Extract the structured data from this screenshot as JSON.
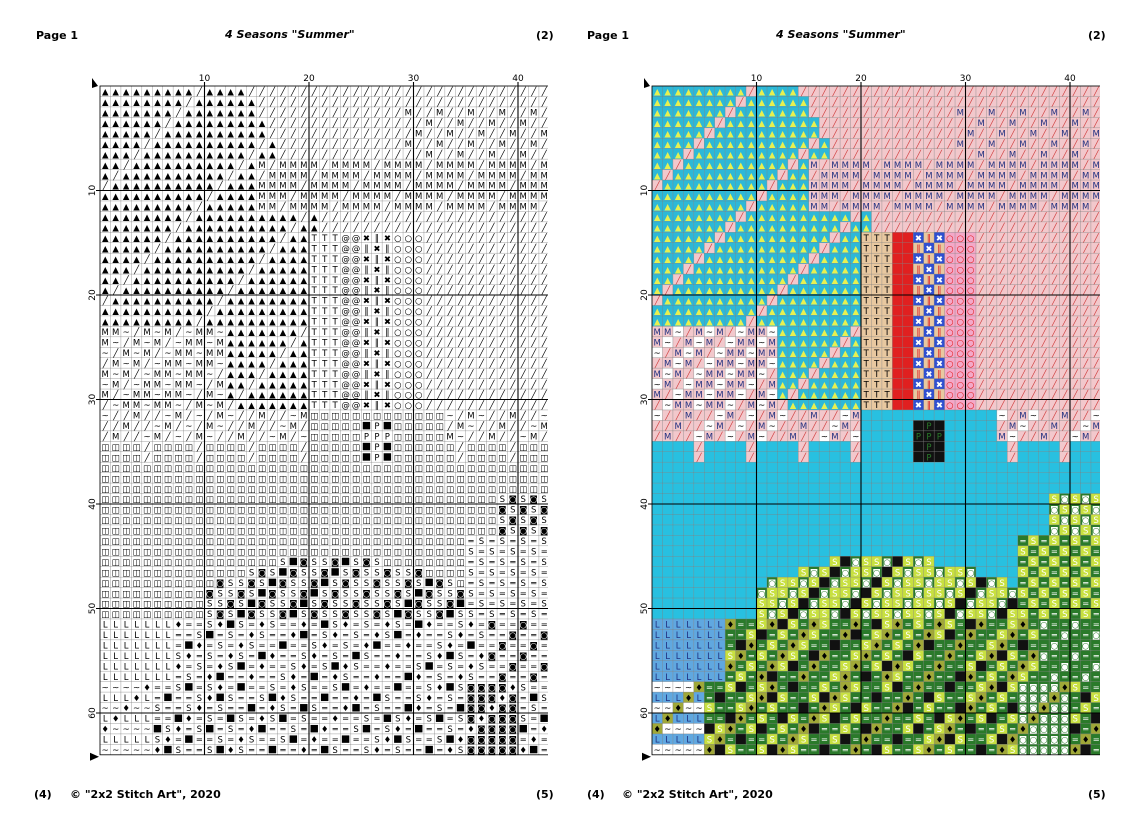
{
  "left_page": {
    "page_label": "Page 1",
    "title": "4 Seasons \"Summer\"",
    "top_right": "(2)",
    "bottom_left": "(4)",
    "copyright": "© \"2x2 Stitch Art\", 2020",
    "bottom_right": "(5)",
    "mode": "symbol"
  },
  "right_page": {
    "page_label": "Page 1",
    "title": "4 Seasons \"Summer\"",
    "top_right": "(2)",
    "bottom_left": "(4)",
    "copyright": "© \"2x2 Stitch Art\", 2020",
    "bottom_right": "(5)",
    "mode": "color"
  },
  "grid": {
    "columns": 43,
    "rows": 64,
    "col_ticks": [
      "10",
      "20",
      "30",
      "40"
    ],
    "row_ticks": [
      "10",
      "20",
      "30",
      "40",
      "50",
      "60"
    ]
  },
  "colors": {
    "sky": "#2db8d8",
    "triangle": "#e8f050",
    "rose": "#f2c8cc",
    "rose_hatch": "#d04040",
    "navy_text": "#203080",
    "white": "#ffffff",
    "sun_red": "#e02020",
    "tan": "#e8c8a0",
    "blue_x": "#3050d0",
    "pink": "#f4a8c8",
    "sea": "#28c0e0",
    "black": "#111111",
    "dark_green": "#2a7a2a",
    "lime": "#c8e040",
    "olive": "#a0a838",
    "light_blue": "#60a8e0",
    "gridline": "#000000"
  },
  "legend_symbols": {
    "triangle": "▲",
    "slash": "╱",
    "m": "M",
    "t": "T",
    "x": "✖",
    "bar": "‖",
    "circle": "○",
    "tilde": "~",
    "square": "◫",
    "filled": "■",
    "p": "P",
    "s": "S",
    "eq": "═",
    "dot": "◙",
    "l": "L",
    "drop": "♦",
    "swirl": "@"
  }
}
